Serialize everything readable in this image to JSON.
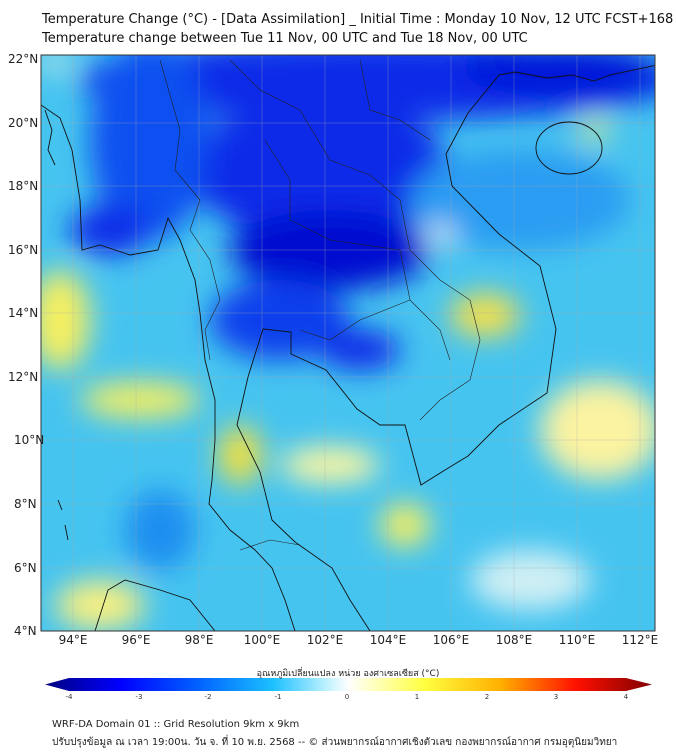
{
  "title_line1": "Temperature Change (°C) - [Data Assimilation] _ Initial Time : Monday 10 Nov, 12 UTC FCST+168",
  "title_line2": "Temperature change between Tue 11 Nov, 00 UTC and Tue 18 Nov, 00 UTC",
  "lat_labels": [
    "22°N",
    "20°N",
    "18°N",
    "16°N",
    "14°N",
    "12°N",
    "10°N",
    "8°N",
    "6°N",
    "4°N"
  ],
  "lon_labels": [
    "94°E",
    "96°E",
    "98°E",
    "100°E",
    "102°E",
    "104°E",
    "106°E",
    "108°E",
    "110°E",
    "112°E"
  ],
  "colorbar": {
    "label": "อุณหภูมิเปลี่ยนแปลง หน่วย องศาเซลเซียส (°C)",
    "ticks": [
      "-4",
      "-3",
      "-2",
      "-1",
      "0",
      "1",
      "2",
      "3",
      "4"
    ],
    "min": -4,
    "max": 4,
    "colors": [
      "#00007f",
      "#0000ff",
      "#0080ff",
      "#4fd8ff",
      "#ffffff",
      "#ffff40",
      "#ffb000",
      "#ff0000",
      "#7f0000"
    ]
  },
  "footer": {
    "line1": "WRF-DA Domain 01 :: Grid Resolution 9km x 9km",
    "line2": "ปรับปรุงข้อมูล ณ เวลา 19:00น. วัน จ. ที่ 10 พ.ย. 2568 -- © ส่วนพยากรณ์อากาศเชิงตัวเลข กองพยากรณ์อากาศ กรมอุตุนิยมวิทยา"
  }
}
